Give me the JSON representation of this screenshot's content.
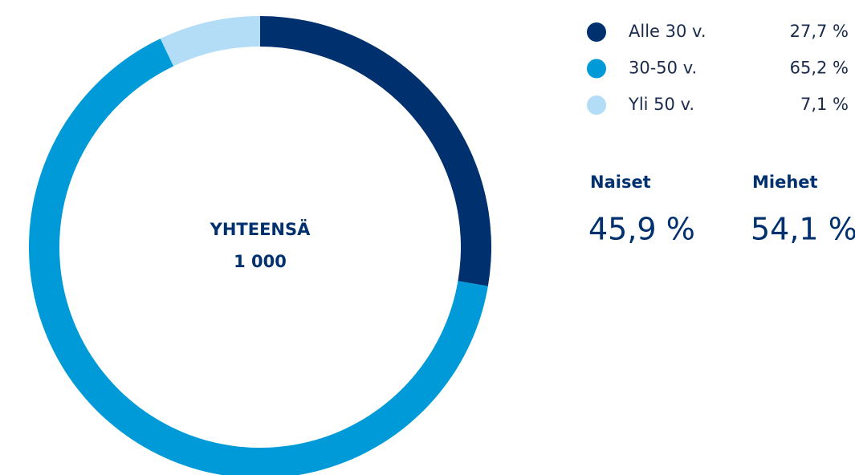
{
  "chart_data": {
    "type": "donut",
    "categories": [
      "Alle 30 v.",
      "30-50 v.",
      "Yli 50 v."
    ],
    "values": [
      27.7,
      65.2,
      7.1
    ],
    "value_labels": [
      "27,7 %",
      "65,2 %",
      "7,1 %"
    ],
    "colors": [
      "#00306e",
      "#009ad9",
      "#b3dcf7"
    ],
    "center_title": "YHTEENSÄ",
    "center_value": "1 000",
    "stats": [
      {
        "label": "Naiset",
        "value": "45,9 %"
      },
      {
        "label": "Miehet",
        "value": "54,1 %"
      }
    ]
  }
}
